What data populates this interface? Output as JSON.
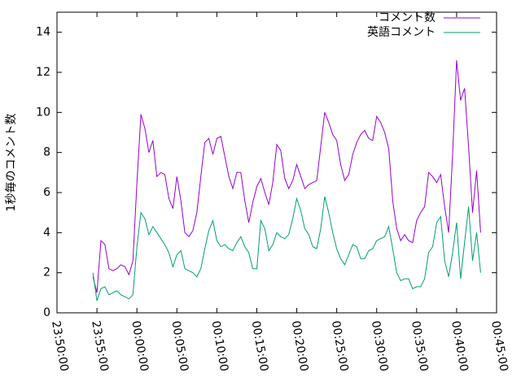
{
  "chart_data": {
    "type": "line",
    "ylabel": "1秒毎のコメント数",
    "ylim": [
      0,
      15
    ],
    "yticks": [
      0,
      2,
      4,
      6,
      8,
      10,
      12,
      14
    ],
    "xlim": [
      "23:50:00",
      "00:45:00"
    ],
    "xticks": [
      "23:50:00",
      "23:55:00",
      "00:00:00",
      "00:05:00",
      "00:10:00",
      "00:15:00",
      "00:20:00",
      "00:25:00",
      "00:30:00",
      "00:35:00",
      "00:40:00",
      "00:45:00"
    ],
    "legend": "top-right",
    "x": [
      "23:54:30",
      "23:55:00",
      "23:55:30",
      "23:56:00",
      "23:56:30",
      "23:57:00",
      "23:57:30",
      "23:58:00",
      "23:58:30",
      "23:59:00",
      "23:59:30",
      "00:00:00",
      "00:00:30",
      "00:01:00",
      "00:01:30",
      "00:02:00",
      "00:02:30",
      "00:03:00",
      "00:03:30",
      "00:04:00",
      "00:04:30",
      "00:05:00",
      "00:05:30",
      "00:06:00",
      "00:06:30",
      "00:07:00",
      "00:07:30",
      "00:08:00",
      "00:08:30",
      "00:09:00",
      "00:09:30",
      "00:10:00",
      "00:10:30",
      "00:11:00",
      "00:11:30",
      "00:12:00",
      "00:12:30",
      "00:13:00",
      "00:13:30",
      "00:14:00",
      "00:14:30",
      "00:15:00",
      "00:15:30",
      "00:16:00",
      "00:16:30",
      "00:17:00",
      "00:17:30",
      "00:18:00",
      "00:18:30",
      "00:19:00",
      "00:19:30",
      "00:20:00",
      "00:20:30",
      "00:21:00",
      "00:21:30",
      "00:22:00",
      "00:22:30",
      "00:23:00",
      "00:23:30",
      "00:24:00",
      "00:24:30",
      "00:25:00",
      "00:25:30",
      "00:26:00",
      "00:26:30",
      "00:27:00",
      "00:27:30",
      "00:28:00",
      "00:28:30",
      "00:29:00",
      "00:29:30",
      "00:30:00",
      "00:30:30",
      "00:31:00",
      "00:31:30",
      "00:32:00",
      "00:32:30",
      "00:33:00",
      "00:33:30",
      "00:34:00",
      "00:34:30",
      "00:35:00",
      "00:35:30",
      "00:36:00",
      "00:36:30",
      "00:37:00",
      "00:37:30",
      "00:38:00",
      "00:38:30",
      "00:39:00",
      "00:39:30",
      "00:40:00",
      "00:40:30",
      "00:41:00",
      "00:41:30",
      "00:42:00",
      "00:42:30",
      "00:43:00"
    ],
    "series": [
      {
        "name": "コメント数",
        "color": "#9400d3",
        "values": [
          1.8,
          1.0,
          3.6,
          3.4,
          2.2,
          2.1,
          2.2,
          2.4,
          2.3,
          1.9,
          2.6,
          6.5,
          9.9,
          9.2,
          8.0,
          8.6,
          6.8,
          7.0,
          6.9,
          5.7,
          5.2,
          6.8,
          5.6,
          4.0,
          3.8,
          4.1,
          5.0,
          6.8,
          8.5,
          8.7,
          7.9,
          8.7,
          8.8,
          7.8,
          6.8,
          6.2,
          7.0,
          7.0,
          5.6,
          4.5,
          5.5,
          6.3,
          6.7,
          6.0,
          5.4,
          6.5,
          8.4,
          8.1,
          6.7,
          6.2,
          6.6,
          7.4,
          6.8,
          6.2,
          6.4,
          6.5,
          6.6,
          8.3,
          10.0,
          9.5,
          8.9,
          8.6,
          7.4,
          6.6,
          6.9,
          7.9,
          8.5,
          8.9,
          9.1,
          8.7,
          8.6,
          9.8,
          9.5,
          9.0,
          8.2,
          5.6,
          4.2,
          3.6,
          3.9,
          3.6,
          3.5,
          4.6,
          5.0,
          5.3,
          7.0,
          6.8,
          6.5,
          6.9,
          5.3,
          4.0,
          7.9,
          12.6,
          10.6,
          11.2,
          8.3,
          5.0,
          7.1,
          4.0
        ]
      },
      {
        "name": "英語コメント",
        "color": "#009e73",
        "values": [
          2.0,
          0.6,
          1.2,
          1.3,
          0.9,
          1.0,
          1.1,
          0.9,
          0.8,
          0.7,
          0.9,
          3.3,
          5.0,
          4.7,
          3.9,
          4.3,
          4.0,
          3.7,
          3.4,
          3.0,
          2.3,
          2.9,
          3.1,
          2.2,
          2.1,
          2.0,
          1.8,
          2.2,
          3.2,
          4.1,
          4.6,
          3.6,
          3.3,
          3.4,
          3.2,
          3.1,
          3.5,
          3.8,
          3.3,
          3.0,
          2.2,
          2.2,
          4.6,
          4.2,
          3.1,
          3.4,
          4.0,
          3.8,
          3.7,
          3.9,
          4.7,
          5.7,
          5.1,
          4.2,
          3.9,
          3.3,
          3.2,
          4.2,
          5.8,
          5.0,
          4.0,
          3.2,
          2.7,
          2.4,
          2.9,
          3.4,
          3.3,
          2.7,
          2.7,
          3.1,
          3.2,
          3.6,
          3.7,
          3.8,
          4.3,
          3.2,
          2.0,
          1.6,
          1.7,
          1.7,
          1.2,
          1.3,
          1.3,
          1.7,
          3.0,
          3.3,
          4.5,
          4.8,
          2.6,
          1.8,
          3.0,
          4.5,
          1.7,
          3.5,
          5.3,
          2.6,
          4.0,
          2.0
        ]
      }
    ]
  }
}
